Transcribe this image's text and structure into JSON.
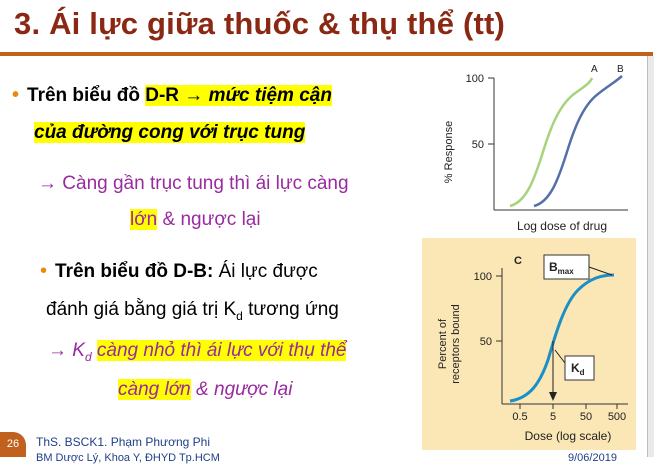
{
  "slide": {
    "title": "3. Ái lực giữa thuốc & thụ thể (tt)",
    "page_number": "26",
    "footer_author": "ThS. BSCK1. Phạm Phương Phi",
    "footer_org": "BM Dược Lý, Khoa Y, ĐHYD Tp.HCM",
    "footer_date": "9/06/2019"
  },
  "bullets": {
    "b1_prefix": "Trên biểu đồ ",
    "b1_hl": "D-R → ",
    "b1_em": "mức tiệm cận",
    "b1_line2": "của đường cong với trục tung",
    "sub1_text": "→ Càng gần trục tung thì ái lực càng",
    "sub1_hl": "lớn",
    "sub1_rest": " & ngược lại",
    "b2_bold": "Trên biểu đồ D-B:",
    "b2_rest": "  Ái lực được",
    "b2_line2_pre": "đánh giá bằng giá trị K",
    "b2_line2_sub": "d",
    "b2_line2_post": " tương ứng",
    "sub2_arrow": "→ K",
    "sub2_sub": "d",
    "sub2_hl": "càng nhỏ thì ái lực với thụ thể",
    "sub2_line2_hl": "càng lớn",
    "sub2_line2_rest": " & ngược lại"
  },
  "figure_dr": {
    "ylabel": "% Response",
    "xlabel": "Log dose of drug",
    "tick_100": "100",
    "tick_50": "50",
    "curve_a": "A",
    "curve_b": "B",
    "color_a": "#a6d37c",
    "color_b": "#5570a8"
  },
  "figure_db": {
    "panel_label": "C",
    "ylabel_1": "Percent of",
    "ylabel_2": "receptors bound",
    "xlabel": "Dose (log scale)",
    "y_ticks": [
      "100",
      "50"
    ],
    "x_ticks": [
      "0.5",
      "5",
      "50",
      "500"
    ],
    "bmax": "B",
    "bmax_sub": "max",
    "kd": "K",
    "kd_sub": "d",
    "bg_color": "#fbe7b6",
    "curve_color": "#1a8fc8"
  },
  "colors": {
    "title": "#8a2813",
    "accent": "#c0621e",
    "highlight": "#ffff00",
    "purple": "#9a2aa0"
  }
}
